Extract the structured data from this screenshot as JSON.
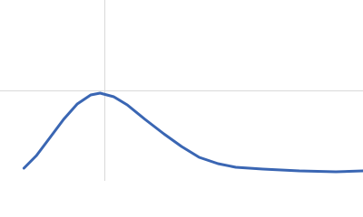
{
  "chart_data": {
    "type": "line",
    "x": [
      0.23,
      0.35,
      0.48,
      0.61,
      0.74,
      0.87,
      0.96,
      1.09,
      1.22,
      1.39,
      1.57,
      1.74,
      1.91,
      2.09,
      2.26,
      2.52,
      2.87,
      3.22,
      3.48
    ],
    "series": [
      {
        "color": "#3a66b3",
        "values": [
          0.14,
          0.28,
          0.48,
          0.68,
          0.85,
          0.95,
          0.97,
          0.93,
          0.84,
          0.68,
          0.52,
          0.38,
          0.26,
          0.19,
          0.15,
          0.13,
          0.11,
          0.1,
          0.11
        ]
      }
    ],
    "xlim": [
      0,
      3.48
    ],
    "ylim": [
      0,
      2
    ],
    "xticks": [
      1
    ],
    "yticks": [
      1
    ],
    "grid": true
  }
}
